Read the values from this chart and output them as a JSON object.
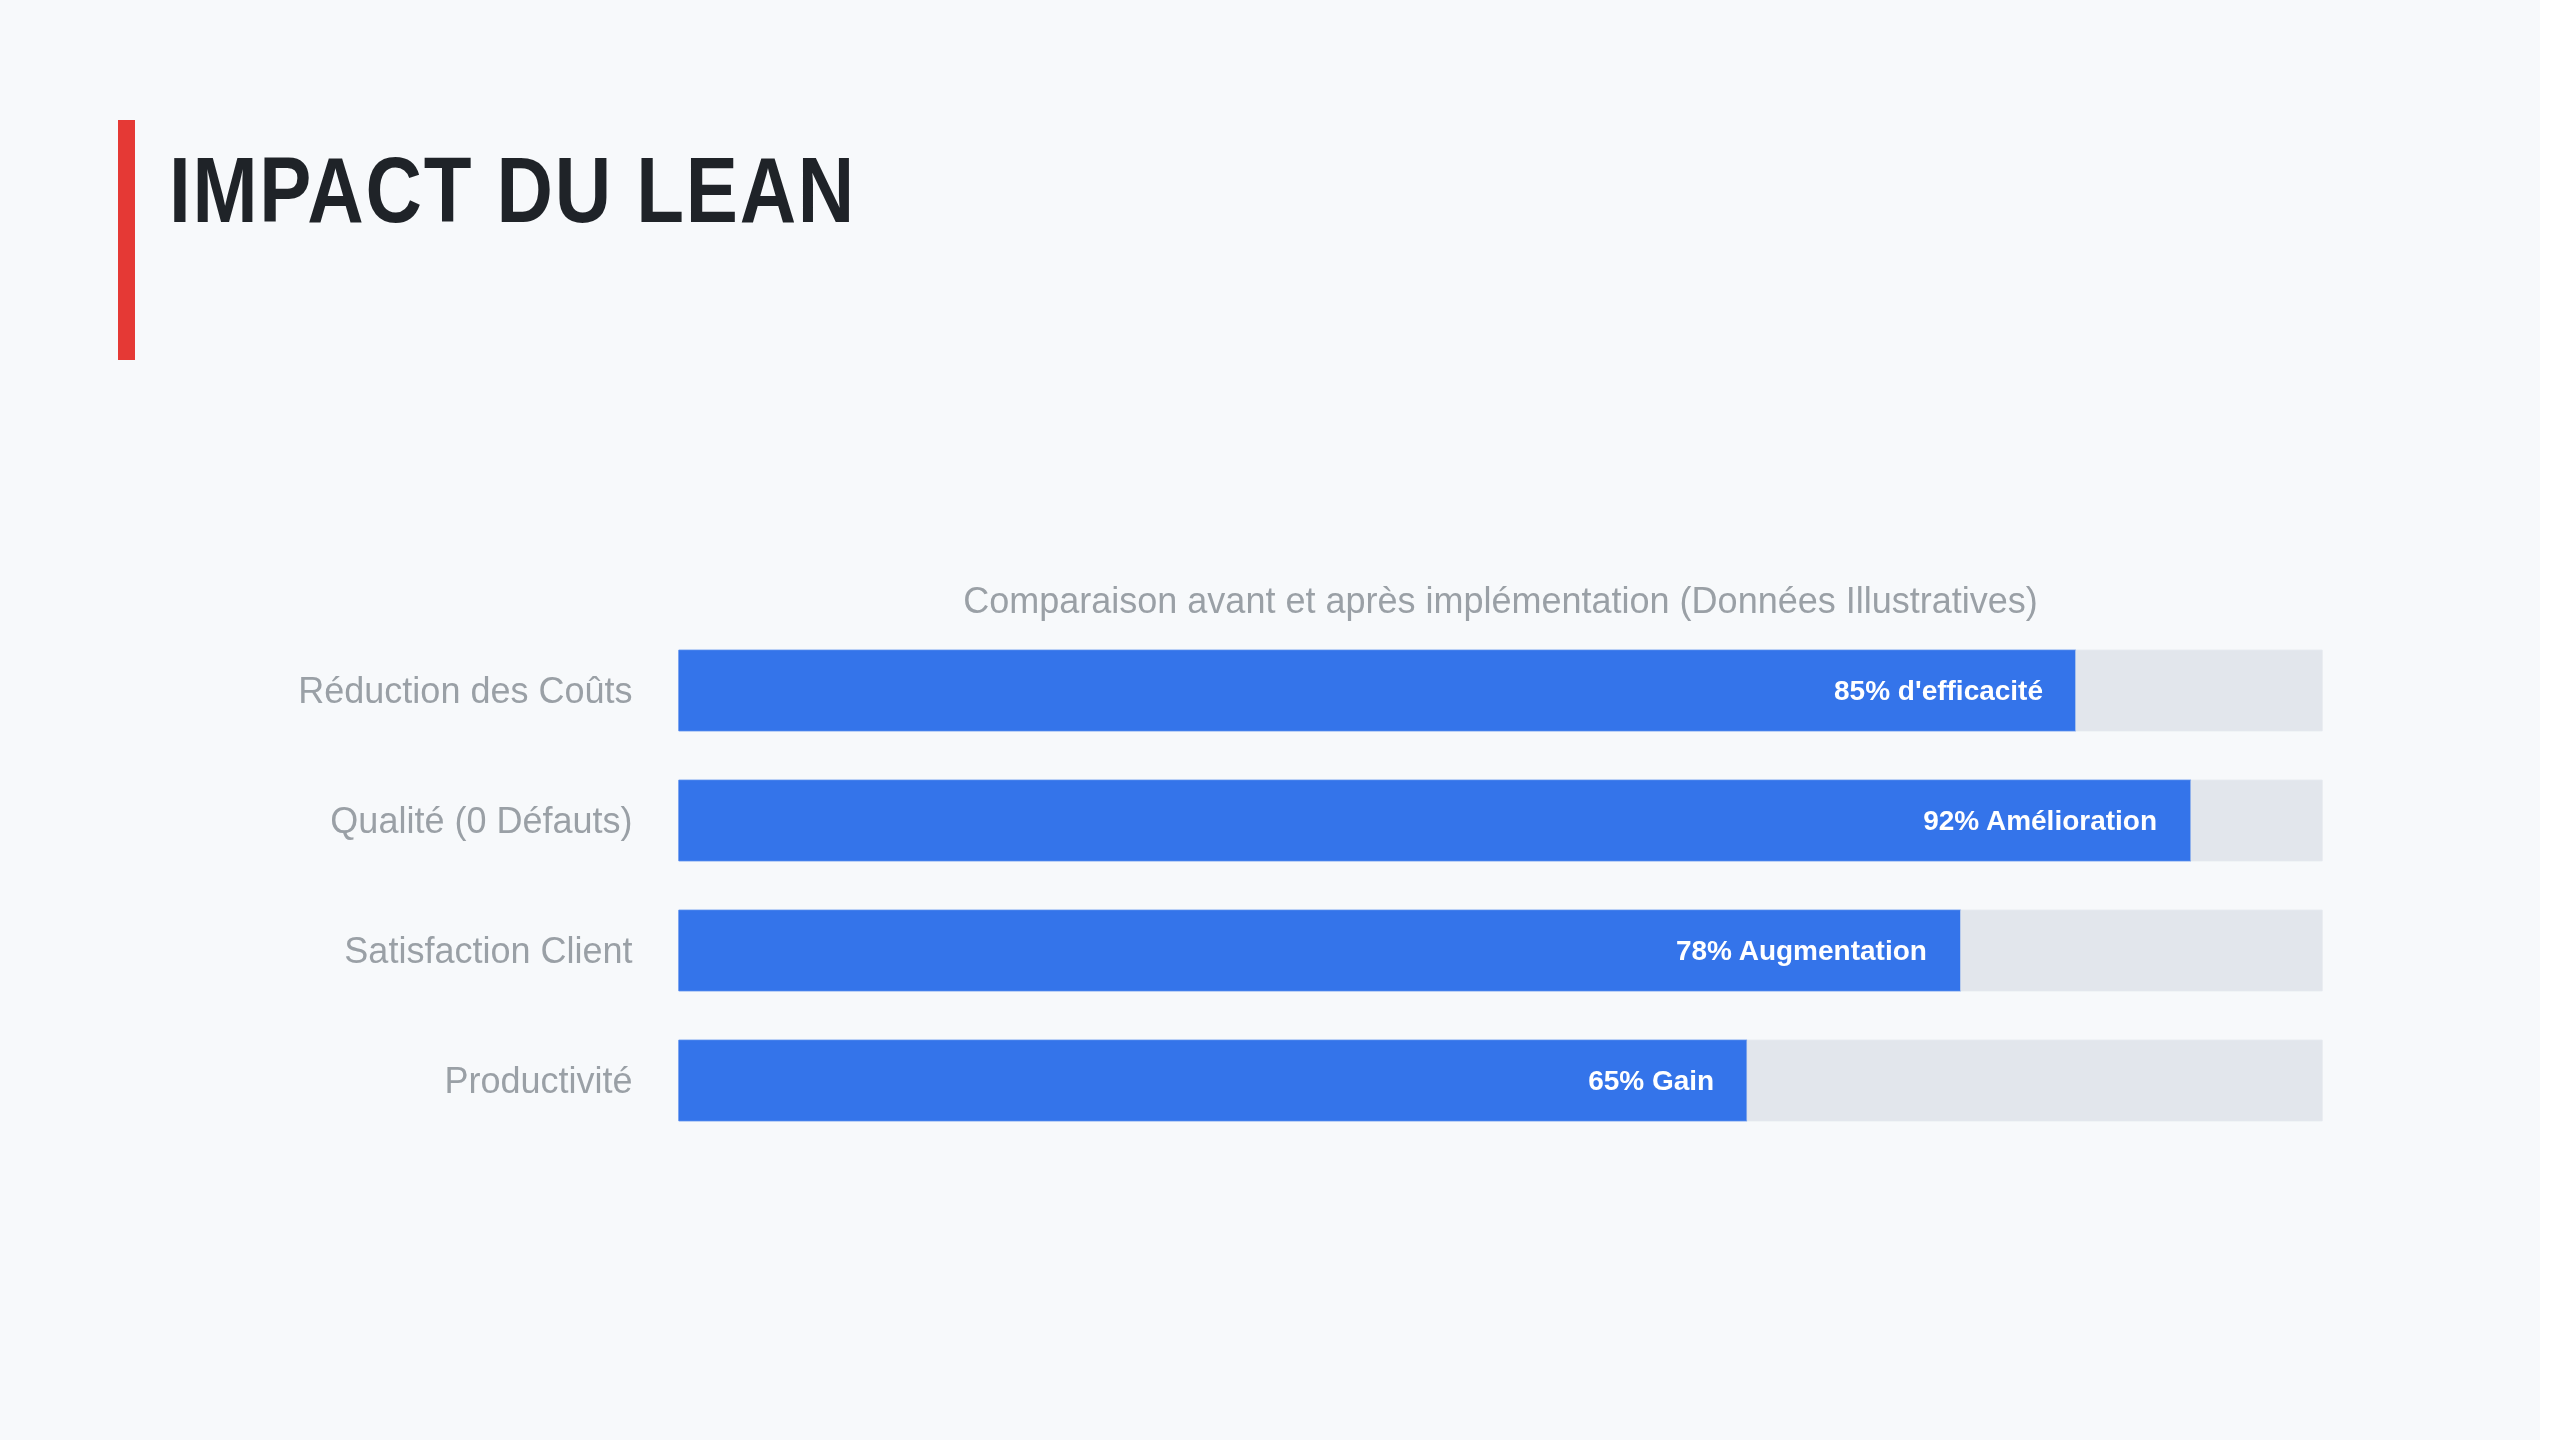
{
  "chart_data": {
    "type": "bar",
    "orientation": "horizontal",
    "stacked": true,
    "title": "IMPACT DU LEAN",
    "subtitle": "Comparaison avant et après implémentation (Données Illustratives)",
    "categories": [
      "Réduction des Coûts",
      "Qualité (0 Défauts)",
      "Satisfaction Client",
      "Productivité"
    ],
    "series": [
      {
        "color": "#3474ea",
        "values": [
          85,
          92,
          78,
          65
        ],
        "value_labels": [
          "85% d'efficacité",
          "92% Amélioration",
          "78% Augmentation",
          "65% Gain"
        ]
      },
      {
        "color": "#e2e6ec",
        "values": [
          15,
          8,
          22,
          35
        ]
      }
    ],
    "xlim": [
      0,
      100
    ],
    "tick_labels": "y",
    "grid": false
  }
}
